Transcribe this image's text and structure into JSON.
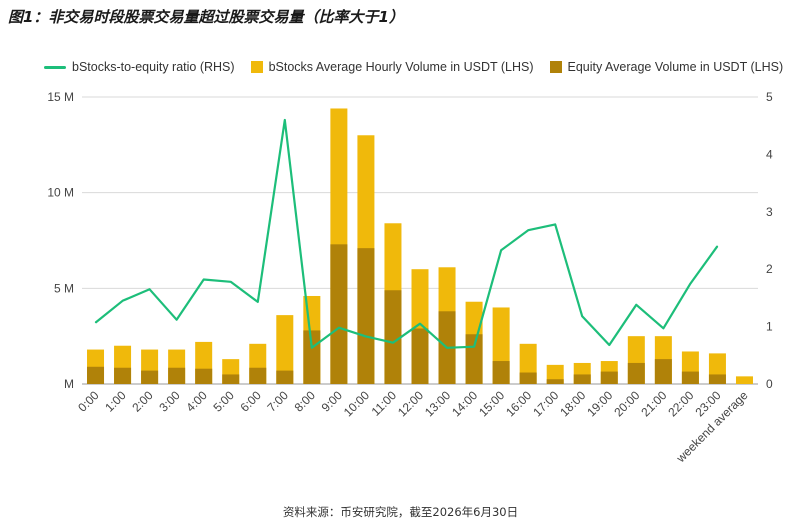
{
  "title": "图1：非交易时段股票交易量超过股票交易量（比率大于1）",
  "source": "资料来源：币安研究院，截至2026年6月30日",
  "colors": {
    "ratio_line": "#1dbe7a",
    "bstocks_bar": "#f0b90b",
    "equity_bar": "#b08209",
    "grid": "#d9d9d9",
    "axis_text": "#444444"
  },
  "legend": {
    "ratio": "bStocks-to-equity ratio (RHS)",
    "bstocks": "bStocks Average Hourly Volume in USDT (LHS)",
    "equity": "Equity Average Volume in USDT (LHS)"
  },
  "chart_data": {
    "type": "bar",
    "categories": [
      "0:00",
      "1:00",
      "2:00",
      "3:00",
      "4:00",
      "5:00",
      "6:00",
      "7:00",
      "8:00",
      "9:00",
      "10:00",
      "11:00",
      "12:00",
      "13:00",
      "14:00",
      "15:00",
      "16:00",
      "17:00",
      "18:00",
      "19:00",
      "20:00",
      "21:00",
      "22:00",
      "23:00",
      "weekend average"
    ],
    "left_axis": {
      "ticks": [
        "M",
        "5 M",
        "10 M",
        "15 M"
      ],
      "tick_values": [
        0,
        5,
        10,
        15
      ],
      "ylim": [
        0,
        15
      ]
    },
    "right_axis": {
      "ticks": [
        "0",
        "1",
        "2",
        "3",
        "4",
        "5"
      ],
      "tick_values": [
        0,
        1,
        2,
        3,
        4,
        5
      ],
      "ylim": [
        0,
        5
      ]
    },
    "grid": true,
    "legend_position": "top",
    "series": [
      {
        "name": "bStocks Average Hourly Volume in USDT (LHS)",
        "type": "bar",
        "axis": "left",
        "values": [
          1.8,
          2.0,
          1.8,
          1.8,
          2.2,
          1.3,
          2.1,
          3.6,
          4.6,
          14.4,
          13.0,
          8.4,
          6.0,
          6.1,
          4.3,
          4.0,
          2.1,
          1.0,
          1.1,
          1.2,
          2.5,
          2.5,
          1.7,
          1.6,
          0.4
        ]
      },
      {
        "name": "Equity Average Volume in USDT (LHS)",
        "type": "bar",
        "axis": "left",
        "values": [
          0.9,
          0.85,
          0.7,
          0.85,
          0.8,
          0.5,
          0.85,
          0.7,
          2.8,
          7.3,
          7.1,
          4.9,
          2.9,
          3.8,
          2.6,
          1.2,
          0.6,
          0.25,
          0.5,
          0.65,
          1.1,
          1.3,
          0.65,
          0.5,
          0
        ]
      },
      {
        "name": "bStocks-to-equity ratio (RHS)",
        "type": "line",
        "axis": "right",
        "values": [
          1.07,
          1.45,
          1.65,
          1.12,
          1.82,
          1.78,
          1.43,
          4.6,
          0.63,
          0.98,
          0.83,
          0.72,
          1.05,
          0.63,
          0.65,
          2.33,
          2.68,
          2.78,
          1.18,
          0.68,
          1.38,
          0.97,
          1.75,
          2.4,
          null
        ]
      }
    ]
  }
}
